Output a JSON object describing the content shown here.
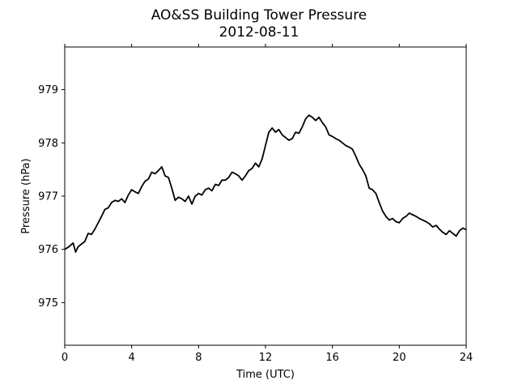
{
  "chart_data": {
    "type": "line",
    "title": "AO&SS Building Tower Pressure",
    "subtitle": "2012-08-11",
    "xlabel": "Time (UTC)",
    "ylabel": "Pressure (hPa)",
    "xlim": [
      0,
      24
    ],
    "ylim": [
      974.2,
      979.8
    ],
    "xticks": [
      0,
      4,
      8,
      12,
      16,
      20,
      24
    ],
    "yticks": [
      975,
      976,
      977,
      978,
      979
    ],
    "grid": false,
    "line_color": "#000000",
    "series": [
      {
        "x": [
          0,
          0.25,
          0.5,
          0.65,
          0.8,
          1.0,
          1.2,
          1.4,
          1.6,
          1.8,
          2.0,
          2.2,
          2.4,
          2.6,
          2.8,
          3.0,
          3.2,
          3.4,
          3.6,
          3.8,
          4.0,
          4.2,
          4.4,
          4.6,
          4.8,
          5.0,
          5.2,
          5.4,
          5.6,
          5.8,
          6.0,
          6.2,
          6.4,
          6.6,
          6.8,
          7.0,
          7.2,
          7.4,
          7.6,
          7.8,
          8.0,
          8.2,
          8.4,
          8.6,
          8.8,
          9.0,
          9.2,
          9.4,
          9.6,
          9.8,
          10.0,
          10.2,
          10.4,
          10.6,
          10.8,
          11.0,
          11.2,
          11.4,
          11.6,
          11.8,
          12.0,
          12.2,
          12.4,
          12.6,
          12.8,
          13.0,
          13.2,
          13.4,
          13.6,
          13.8,
          14.0,
          14.2,
          14.4,
          14.6,
          14.8,
          15.0,
          15.2,
          15.4,
          15.6,
          15.8,
          16.0,
          16.2,
          16.4,
          16.6,
          16.8,
          17.0,
          17.2,
          17.4,
          17.6,
          17.8,
          18.0,
          18.2,
          18.4,
          18.6,
          18.8,
          19.0,
          19.2,
          19.4,
          19.6,
          19.8,
          20.0,
          20.2,
          20.4,
          20.6,
          20.8,
          21.0,
          21.2,
          21.4,
          21.6,
          21.8,
          22.0,
          22.2,
          22.4,
          22.6,
          22.8,
          23.0,
          23.2,
          23.4,
          23.6,
          23.8,
          24.0
        ],
        "values": [
          976.0,
          976.05,
          976.12,
          975.95,
          976.05,
          976.1,
          976.15,
          976.3,
          976.28,
          976.38,
          976.5,
          976.62,
          976.75,
          976.78,
          976.88,
          976.92,
          976.9,
          976.95,
          976.88,
          977.02,
          977.12,
          977.08,
          977.05,
          977.18,
          977.28,
          977.32,
          977.45,
          977.42,
          977.48,
          977.55,
          977.38,
          977.35,
          977.15,
          976.92,
          976.98,
          976.95,
          976.9,
          977.0,
          976.85,
          977.0,
          977.05,
          977.02,
          977.12,
          977.15,
          977.1,
          977.22,
          977.2,
          977.3,
          977.3,
          977.35,
          977.45,
          977.42,
          977.38,
          977.3,
          977.38,
          977.48,
          977.52,
          977.62,
          977.55,
          977.7,
          977.95,
          978.2,
          978.28,
          978.2,
          978.25,
          978.15,
          978.1,
          978.05,
          978.08,
          978.2,
          978.18,
          978.3,
          978.45,
          978.52,
          978.48,
          978.42,
          978.48,
          978.38,
          978.3,
          978.15,
          978.12,
          978.08,
          978.05,
          978.0,
          977.95,
          977.92,
          977.88,
          977.75,
          977.6,
          977.5,
          977.38,
          977.15,
          977.12,
          977.05,
          976.88,
          976.72,
          976.62,
          976.55,
          976.58,
          976.52,
          976.5,
          976.58,
          976.62,
          976.68,
          976.65,
          976.62,
          976.58,
          976.55,
          976.52,
          976.48,
          976.42,
          976.45,
          976.38,
          976.32,
          976.28,
          976.35,
          976.3,
          976.25,
          976.35,
          976.4,
          976.37
        ]
      }
    ]
  }
}
